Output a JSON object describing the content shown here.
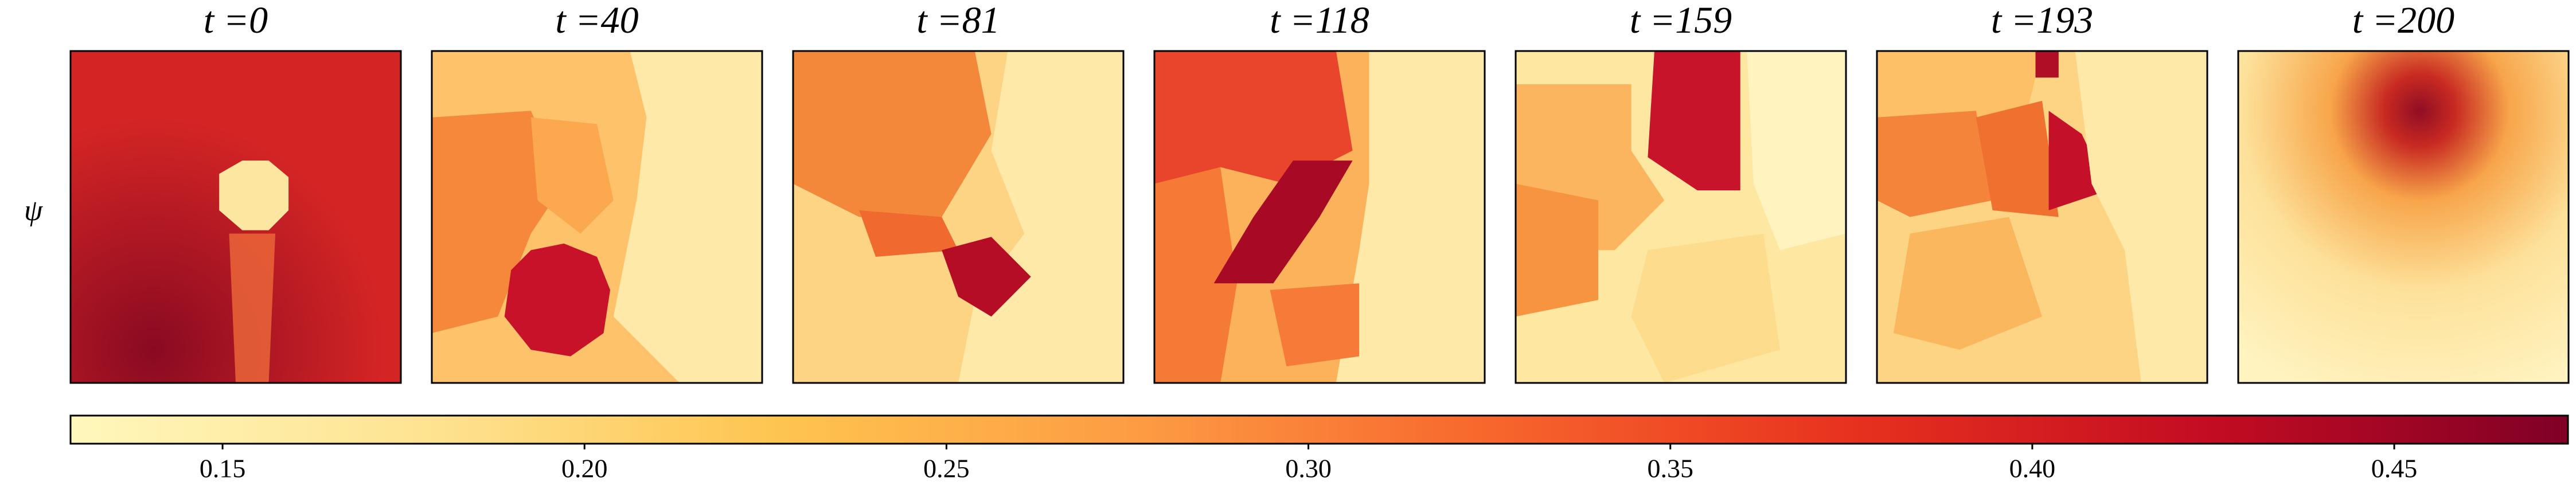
{
  "chart_data": {
    "type": "heatmap-panels",
    "row_label": "ψ",
    "panels": [
      {
        "title": "t =0"
      },
      {
        "title": "t =40"
      },
      {
        "title": "t =81"
      },
      {
        "title": "t =118"
      },
      {
        "title": "t =159"
      },
      {
        "title": "t =193"
      },
      {
        "title": "t =200"
      }
    ],
    "colorbar": {
      "lim": [
        0.129,
        0.474
      ],
      "ticks": [
        0.15,
        {
          "value": 0.2,
          "label": "0.20"
        },
        0.25,
        {
          "value": 0.3,
          "label": "0.30"
        },
        0.35,
        {
          "value": 0.4,
          "label": "0.40"
        },
        0.45
      ],
      "colors": [
        "#fff7bc",
        "#fee391",
        "#fec44f",
        "#fd9b43",
        "#f7652c",
        "#e7311e",
        "#c30c22",
        "#800026"
      ]
    }
  }
}
